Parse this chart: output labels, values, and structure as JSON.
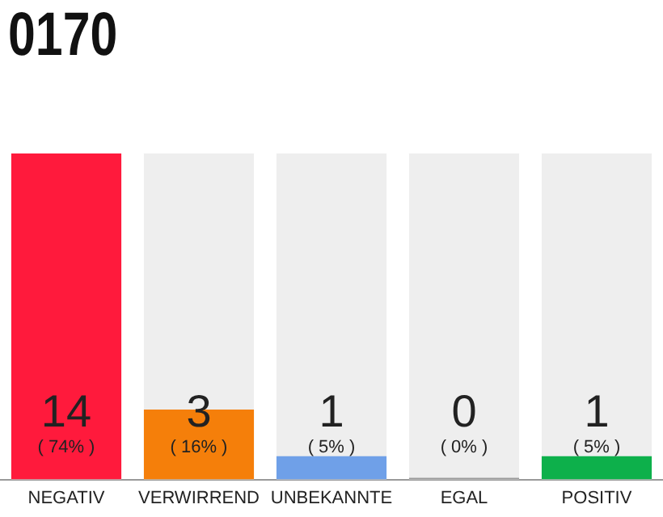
{
  "chart_data": {
    "type": "bar",
    "title": "0170",
    "categories": [
      "NEGATIV",
      "VERWIRREND",
      "UNBEKANNTE",
      "EGAL",
      "POSITIV"
    ],
    "values": [
      14,
      3,
      1,
      0,
      1
    ],
    "colors": [
      "#ff1a3c",
      "#f57f0a",
      "#6fa0e8",
      "#999999",
      "#0db04b"
    ],
    "tick_labels": "x",
    "grid": false,
    "legend": false,
    "value_labels": [
      "14\n( 74% )",
      "3\n( 16% )",
      "1\n( 5% )",
      "0\n( 0% )",
      "1\n( 5% )"
    ]
  }
}
